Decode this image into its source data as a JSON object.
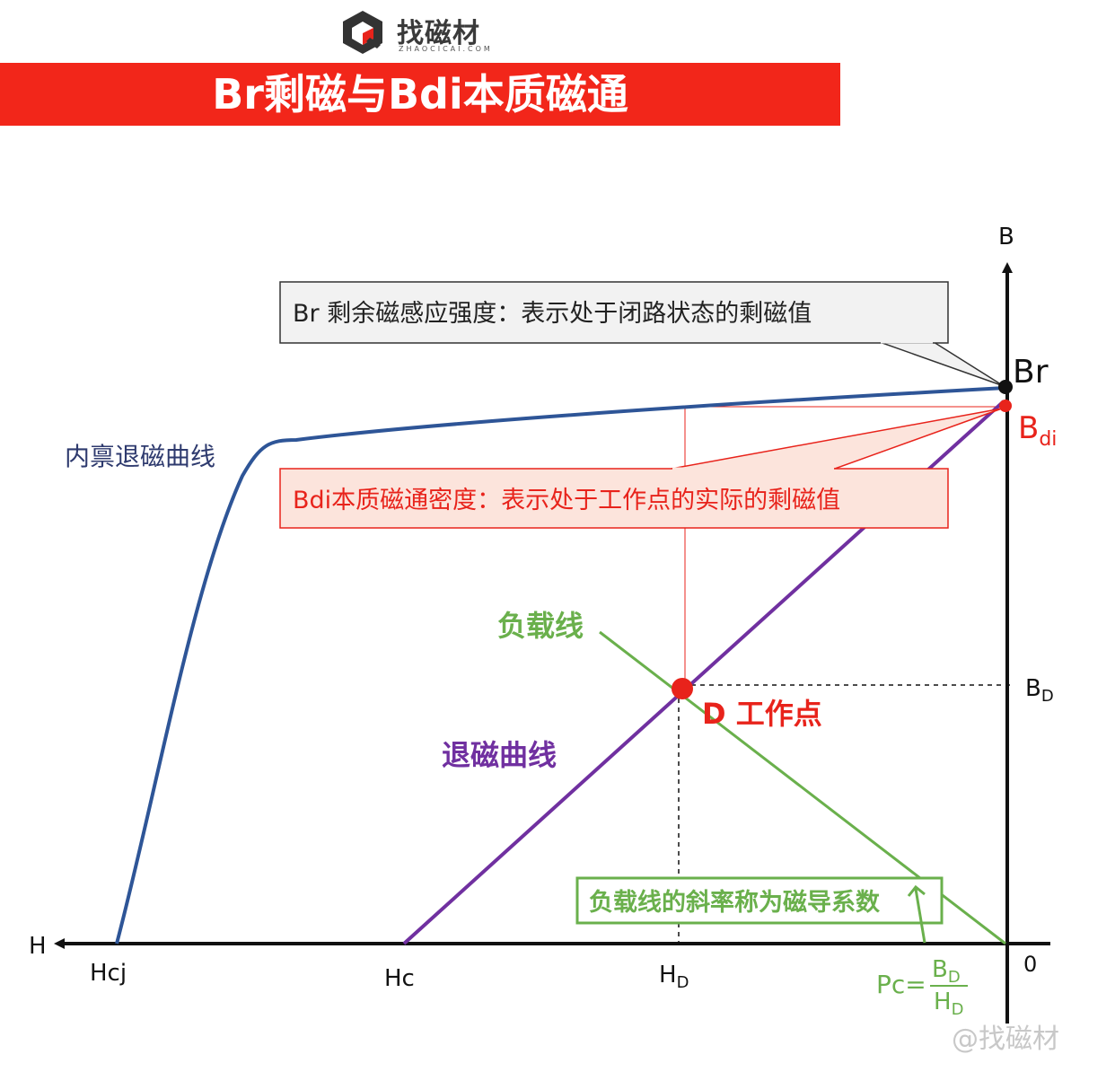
{
  "brand": {
    "name": "找磁材",
    "sub": "ZHAOCICAI.COM"
  },
  "banner": {
    "title": "Br剩磁与Bdi本质磁通"
  },
  "axes": {
    "b_label": "B",
    "h_label": "H",
    "origin_label": "0",
    "hcj": "Hcj",
    "hc": "Hc",
    "hd": "H",
    "hd_sub": "D",
    "bd": "B",
    "bd_sub": "D"
  },
  "points": {
    "br": "Br",
    "bdi": "B",
    "bdi_sub": "di",
    "work": "D 工作点"
  },
  "curves": {
    "intrinsic": "内禀退磁曲线",
    "demag": "退磁曲线",
    "load": "负载线"
  },
  "callouts": {
    "br_desc": "Br 剩余磁感应强度：表示处于闭路状态的剩磁值",
    "bdi_desc": "Bdi本质磁通密度：表示处于工作点的实际的剩磁值",
    "slope_desc": "负载线的斜率称为磁导系数"
  },
  "formula": {
    "lhs": "Pc=",
    "num": "B",
    "num_sub": "D",
    "den": "H",
    "den_sub": "D"
  },
  "watermark": "@找磁材",
  "colors": {
    "banner": "#f2261a",
    "intrinsic_curve": "#2e5597",
    "demag_curve": "#7030a0",
    "load_line": "#6ab04c",
    "highlight": "#e8231b"
  }
}
